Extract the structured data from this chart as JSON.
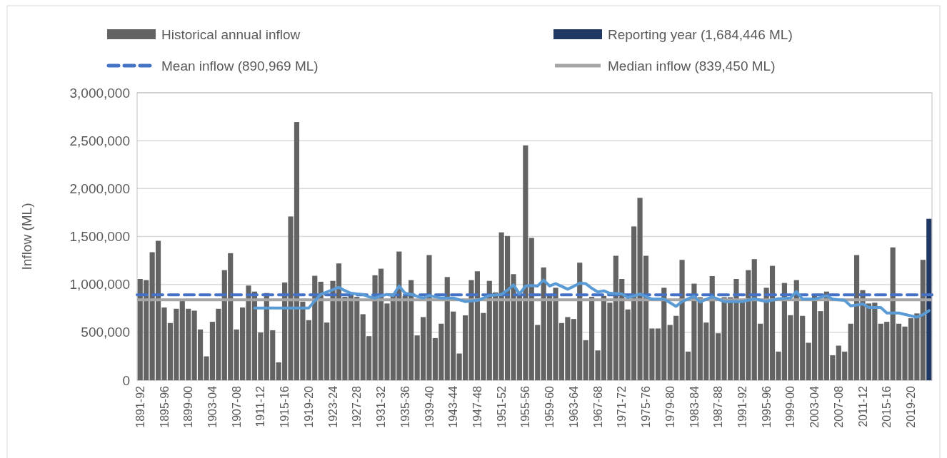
{
  "chart_data": {
    "type": "bar",
    "stacked": true,
    "ylabel": "Inflow (ML)",
    "categories": [
      "1891-92",
      null,
      null,
      null,
      "1895-96",
      null,
      null,
      null,
      "1899-00",
      null,
      null,
      null,
      "1903-04",
      null,
      null,
      null,
      "1907-08",
      null,
      null,
      null,
      "1911-12",
      null,
      null,
      null,
      "1915-16",
      null,
      null,
      null,
      "1919-20",
      null,
      null,
      null,
      "1923-24",
      null,
      null,
      null,
      "1927-28",
      null,
      null,
      null,
      "1931-32",
      null,
      null,
      null,
      "1935-36",
      null,
      null,
      null,
      "1939-40",
      null,
      null,
      null,
      "1943-44",
      null,
      null,
      null,
      "1947-48",
      null,
      null,
      null,
      "1951-52",
      null,
      null,
      null,
      "1955-56",
      null,
      null,
      null,
      "1959-60",
      null,
      null,
      null,
      "1963-64",
      null,
      null,
      null,
      "1967-68",
      null,
      null,
      null,
      "1971-72",
      null,
      null,
      null,
      "1975-76",
      null,
      null,
      null,
      "1979-80",
      null,
      null,
      null,
      "1983-84",
      null,
      null,
      null,
      "1987-88",
      null,
      null,
      null,
      "1991-92",
      null,
      null,
      null,
      "1995-96",
      null,
      null,
      null,
      "1999-00",
      null,
      null,
      null,
      "2003-04",
      null,
      null,
      null,
      "2007-08",
      null,
      null,
      null,
      "2011-12",
      null,
      null,
      null,
      "2015-16",
      null,
      null,
      null,
      "2019-20",
      null,
      null,
      null
    ],
    "series": [
      {
        "name": "Historical annual inflow",
        "color": "#636363",
        "values": [
          1057000,
          1045000,
          1336000,
          1455000,
          759000,
          597000,
          746000,
          833000,
          746000,
          726000,
          530000,
          249000,
          610000,
          746000,
          1149000,
          1326000,
          530000,
          759000,
          988000,
          925000,
          498000,
          910000,
          522000,
          187000,
          1020000,
          1709000,
          2694000,
          820000,
          627000,
          1090000,
          1028000,
          602000,
          1037000,
          1219000,
          870000,
          895000,
          870000,
          689000,
          460000,
          1095000,
          1164000,
          801000,
          895000,
          1343000,
          880000,
          1045000,
          468000,
          659000,
          1306000,
          440000,
          590000,
          1077000,
          717000,
          279000,
          677000,
          1045000,
          1137000,
          702000,
          1037000,
          916000,
          1543000,
          1505000,
          1107000,
          880000,
          2451000,
          1485000,
          577000,
          1177000,
          883000,
          965000,
          597000,
          659000,
          639000,
          1227000,
          418000,
          870000,
          311000,
          880000,
          809000,
          1299000,
          1057000,
          739000,
          1605000,
          1903000,
          1299000,
          540000,
          540000,
          965000,
          577000,
          672000,
          1256000,
          299000,
          1008000,
          866000,
          602000,
          1087000,
          490000,
          866000,
          866000,
          1057000,
          821000,
          1149000,
          1264000,
          590000,
          965000,
          1194000,
          299000,
          1015000,
          679000,
          1045000,
          672000,
          391000,
          883000,
          721000,
          925000,
          261000,
          361000,
          299000,
          590000,
          1306000,
          940000,
          801000,
          809000,
          590000,
          610000,
          1386000,
          590000,
          560000,
          647000,
          697000,
          1256000,
          null
        ]
      },
      {
        "name": "Reporting year (1,684,446 ML)",
        "color": "#203864",
        "values": [
          null,
          null,
          null,
          null,
          null,
          null,
          null,
          null,
          null,
          null,
          null,
          null,
          null,
          null,
          null,
          null,
          null,
          null,
          null,
          null,
          null,
          null,
          null,
          null,
          null,
          null,
          null,
          null,
          null,
          null,
          null,
          null,
          null,
          null,
          null,
          null,
          null,
          null,
          null,
          null,
          null,
          null,
          null,
          null,
          null,
          null,
          null,
          null,
          null,
          null,
          null,
          null,
          null,
          null,
          null,
          null,
          null,
          null,
          null,
          null,
          null,
          null,
          null,
          null,
          null,
          null,
          null,
          null,
          null,
          null,
          null,
          null,
          null,
          null,
          null,
          null,
          null,
          null,
          null,
          null,
          null,
          null,
          null,
          null,
          null,
          null,
          null,
          null,
          null,
          null,
          null,
          null,
          null,
          null,
          null,
          null,
          null,
          null,
          null,
          null,
          null,
          null,
          null,
          null,
          null,
          null,
          null,
          null,
          null,
          null,
          null,
          null,
          null,
          null,
          null,
          null,
          null,
          null,
          null,
          null,
          null,
          null,
          null,
          null,
          null,
          null,
          null,
          null,
          null,
          null,
          null,
          1684446
        ]
      },
      {
        "type": "line",
        "color": "#5b9bd5",
        "values": [
          null,
          null,
          null,
          null,
          null,
          null,
          null,
          null,
          null,
          null,
          null,
          null,
          null,
          null,
          null,
          null,
          null,
          null,
          null,
          754000,
          754000,
          754000,
          754000,
          754000,
          754000,
          754000,
          754000,
          754000,
          754000,
          830000,
          896000,
          920000,
          945000,
          970000,
          935000,
          908000,
          900000,
          896000,
          870000,
          858000,
          880000,
          896000,
          883000,
          983000,
          908000,
          896000,
          875000,
          858000,
          883000,
          870000,
          858000,
          858000,
          858000,
          840000,
          821000,
          827000,
          833000,
          858000,
          883000,
          890000,
          896000,
          940000,
          995000,
          900000,
          983000,
          988000,
          983000,
          1045000,
          983000,
          1008000,
          980000,
          950000,
          980000,
          1013000,
          1008000,
          960000,
          921000,
          933000,
          908000,
          904000,
          900000,
          863000,
          880000,
          900000,
          873000,
          846000,
          846000,
          846000,
          809000,
          771000,
          821000,
          850000,
          876000,
          816000,
          845000,
          871000,
          846000,
          821000,
          821000,
          821000,
          821000,
          836000,
          851000,
          836000,
          821000,
          836000,
          851000,
          855000,
          858000,
          925000,
          846000,
          846000,
          846000,
          865000,
          883000,
          846000,
          840000,
          833000,
          776000,
          786000,
          796000,
          759000,
          759000,
          759000,
          702000,
          702000,
          702000,
          687000,
          672000,
          659000,
          684000,
          726000
        ]
      }
    ],
    "ref_lines": [
      {
        "axis": "y",
        "value": 890969,
        "label": "Mean inflow (890,969 ML)",
        "color": "#4472c4",
        "line_style": "dashed"
      },
      {
        "axis": "y",
        "value": 839450,
        "label": "Median inflow (839,450 ML)",
        "color": "#a5a5a5",
        "line_style": "solid"
      }
    ],
    "ylim": [
      0,
      3000000
    ],
    "yticks": [
      0,
      {
        "value": 500000,
        "label": "500,000"
      },
      {
        "value": 1000000,
        "label": "1,000,000"
      },
      {
        "value": 1500000,
        "label": "1,500,000"
      },
      {
        "value": 2000000,
        "label": "2,000,000"
      },
      {
        "value": 2500000,
        "label": "2,500,000"
      },
      {
        "value": 3000000,
        "label": "3,000,000"
      }
    ],
    "grid": "y",
    "legend": "top"
  }
}
